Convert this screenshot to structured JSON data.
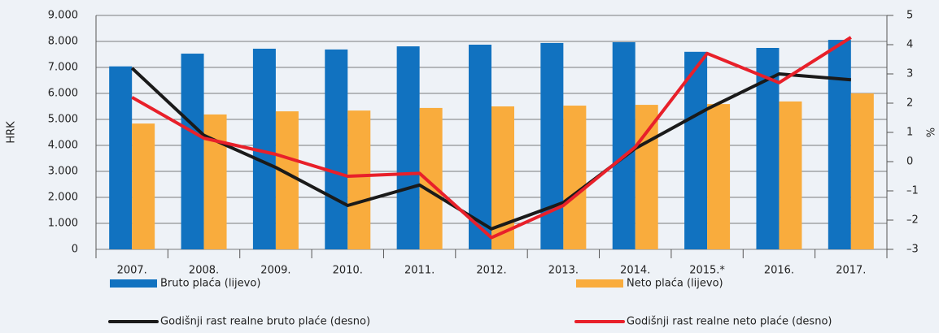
{
  "chart_data": {
    "type": "bar_line",
    "y_label": "HRK",
    "y2_label": "%",
    "categories": [
      "2007.",
      "2008.",
      "2009.",
      "2010.",
      "2011.",
      "2012.",
      "2013.",
      "2014.",
      "2015.*",
      "2016.",
      "2017."
    ],
    "series": [
      {
        "name": "Bruto plaća (lijevo)",
        "color": "#1172c0",
        "kind": "bar",
        "values": [
          7040,
          7530,
          7720,
          7690,
          7810,
          7875,
          7940,
          7970,
          7600,
          7750,
          8060
        ]
      },
      {
        "name": "Neto plaća (lijevo)",
        "color": "#f9ac3d",
        "kind": "bar",
        "values": [
          4840,
          5190,
          5310,
          5340,
          5440,
          5500,
          5530,
          5560,
          5590,
          5690,
          6000
        ]
      },
      {
        "name": "Godišnji rast realne bruto plaće (desno)",
        "color": "#1a1a1a",
        "kind": "line",
        "axis": "y2",
        "values": [
          3.2,
          0.9,
          -0.2,
          -1.5,
          -0.8,
          -2.3,
          -1.4,
          0.45,
          1.8,
          3.0,
          2.8
        ]
      },
      {
        "name": "Godišnji rast realne neto plaće (desno)",
        "color": "#e8202a",
        "kind": "line",
        "axis": "y2",
        "values": [
          2.2,
          0.8,
          0.25,
          -0.5,
          -0.4,
          -2.6,
          -1.5,
          0.5,
          3.7,
          2.7,
          4.25
        ]
      }
    ],
    "ylim": [
      0,
      9000
    ],
    "yticks": [
      0,
      {
        "value": 1000,
        "label": "1.000"
      },
      {
        "value": 2000,
        "label": "2.000"
      },
      {
        "value": 3000,
        "label": "3.000"
      },
      {
        "value": 4000,
        "label": "4.000"
      },
      {
        "value": 5000,
        "label": "5.000"
      },
      {
        "value": 6000,
        "label": "6.000"
      },
      {
        "value": 7000,
        "label": "7.000"
      },
      {
        "value": 8000,
        "label": "8.000"
      },
      {
        "value": 9000,
        "label": "9.000"
      }
    ],
    "y2lim": [
      -3,
      5
    ],
    "y2ticks": [
      {
        "value": -3,
        "label": "–3"
      },
      {
        "value": -2,
        "label": "–2"
      },
      {
        "value": -1,
        "label": "–1"
      },
      0,
      1,
      2,
      3,
      4,
      5
    ],
    "grid": true
  }
}
